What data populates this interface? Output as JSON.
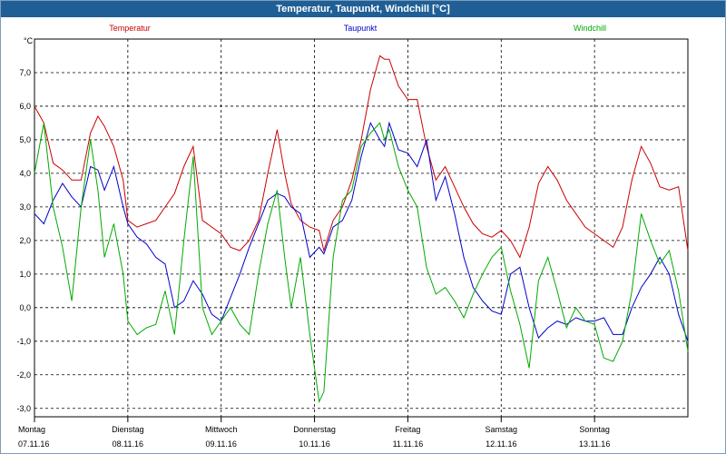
{
  "window": {
    "title": "Temperatur, Taupunkt, Windchill [°C]"
  },
  "chart_data": {
    "type": "line",
    "title": "Temperatur, Taupunkt, Windchill [°C]",
    "ylabel": "°C",
    "ylim": [
      -3.25,
      8.0
    ],
    "yticks": [
      7,
      6,
      5,
      4,
      3,
      2,
      1,
      0,
      -1,
      -2,
      -3
    ],
    "ytick_labels": [
      "7,0",
      "6,0",
      "5,0",
      "4,0",
      "3,0",
      "2,0",
      "1,0",
      "0,0",
      "-1,0",
      "-2,0",
      "-3,0"
    ],
    "x_days": [
      {
        "day": "Montag",
        "date": "07.11.16"
      },
      {
        "day": "Dienstag",
        "date": "08.11.16"
      },
      {
        "day": "Mittwoch",
        "date": "09.11.16"
      },
      {
        "day": "Donnerstag",
        "date": "10.11.16"
      },
      {
        "day": "Freitag",
        "date": "11.11.16"
      },
      {
        "day": "Samstag",
        "date": "12.11.16"
      },
      {
        "day": "Sonntag",
        "date": "13.11.16"
      }
    ],
    "grid": true,
    "legend_position": "top",
    "x_unit": "day",
    "series": [
      {
        "name": "Temperatur",
        "color": "#cc0000",
        "x": [
          0.0,
          0.1,
          0.2,
          0.3,
          0.4,
          0.5,
          0.6,
          0.68,
          0.75,
          0.85,
          0.95,
          1.0,
          1.1,
          1.2,
          1.3,
          1.4,
          1.5,
          1.6,
          1.7,
          1.8,
          1.9,
          2.0,
          2.1,
          2.2,
          2.3,
          2.4,
          2.5,
          2.6,
          2.68,
          2.75,
          2.85,
          2.95,
          3.05,
          3.1,
          3.2,
          3.3,
          3.4,
          3.5,
          3.6,
          3.7,
          3.75,
          3.8,
          3.9,
          4.0,
          4.1,
          4.2,
          4.3,
          4.4,
          4.5,
          4.6,
          4.7,
          4.8,
          4.9,
          5.0,
          5.1,
          5.2,
          5.3,
          5.4,
          5.5,
          5.6,
          5.7,
          5.8,
          5.9,
          6.0,
          6.1,
          6.2,
          6.3,
          6.4,
          6.5,
          6.6,
          6.7,
          6.8,
          6.9,
          7.0
        ],
        "values": [
          6.0,
          5.5,
          4.3,
          4.1,
          3.8,
          3.8,
          5.2,
          5.7,
          5.4,
          4.8,
          3.8,
          2.6,
          2.4,
          2.5,
          2.6,
          3.0,
          3.4,
          4.2,
          4.8,
          2.6,
          2.4,
          2.2,
          1.8,
          1.7,
          2.0,
          2.6,
          4.0,
          5.3,
          4.0,
          3.1,
          2.6,
          2.4,
          2.3,
          1.7,
          2.6,
          3.0,
          3.8,
          5.0,
          6.5,
          7.5,
          7.4,
          7.4,
          6.6,
          6.2,
          6.2,
          4.8,
          3.8,
          4.2,
          3.6,
          3.0,
          2.5,
          2.2,
          2.1,
          2.3,
          2.0,
          1.5,
          2.4,
          3.7,
          4.2,
          3.8,
          3.2,
          2.8,
          2.4,
          2.2,
          2.0,
          1.8,
          2.4,
          3.8,
          4.8,
          4.3,
          3.6,
          3.5,
          3.6,
          1.7
        ]
      },
      {
        "name": "Taupunkt",
        "color": "#0000cc",
        "x": [
          0.0,
          0.1,
          0.2,
          0.3,
          0.4,
          0.5,
          0.6,
          0.68,
          0.75,
          0.85,
          0.95,
          1.0,
          1.1,
          1.2,
          1.3,
          1.4,
          1.5,
          1.6,
          1.7,
          1.8,
          1.9,
          2.0,
          2.1,
          2.2,
          2.3,
          2.4,
          2.5,
          2.6,
          2.68,
          2.75,
          2.85,
          2.95,
          3.05,
          3.1,
          3.2,
          3.3,
          3.4,
          3.5,
          3.6,
          3.7,
          3.75,
          3.8,
          3.9,
          4.0,
          4.1,
          4.2,
          4.3,
          4.4,
          4.5,
          4.6,
          4.7,
          4.8,
          4.9,
          5.0,
          5.1,
          5.2,
          5.3,
          5.4,
          5.5,
          5.6,
          5.7,
          5.8,
          5.9,
          6.0,
          6.1,
          6.2,
          6.3,
          6.4,
          6.5,
          6.6,
          6.7,
          6.8,
          6.9,
          7.0
        ],
        "values": [
          2.8,
          2.5,
          3.2,
          3.7,
          3.3,
          3.0,
          4.2,
          4.1,
          3.5,
          4.2,
          3.0,
          2.5,
          2.1,
          1.9,
          1.5,
          1.3,
          0.0,
          0.2,
          0.8,
          0.4,
          -0.2,
          -0.4,
          0.3,
          1.0,
          1.8,
          2.5,
          3.2,
          3.4,
          3.3,
          3.0,
          2.8,
          1.5,
          1.8,
          1.6,
          2.4,
          2.6,
          3.2,
          4.5,
          5.5,
          5.0,
          4.8,
          5.5,
          4.7,
          4.6,
          4.2,
          5.0,
          3.2,
          3.9,
          2.8,
          1.5,
          0.6,
          0.2,
          -0.1,
          -0.2,
          1.0,
          1.2,
          0.0,
          -0.9,
          -0.6,
          -0.4,
          -0.5,
          -0.3,
          -0.4,
          -0.4,
          -0.3,
          -0.8,
          -0.8,
          0.0,
          0.6,
          1.0,
          1.5,
          1.0,
          -0.2,
          -1.0
        ]
      },
      {
        "name": "Windchill",
        "color": "#00aa00",
        "x": [
          0.0,
          0.1,
          0.2,
          0.3,
          0.4,
          0.5,
          0.6,
          0.68,
          0.75,
          0.85,
          0.95,
          1.0,
          1.1,
          1.2,
          1.3,
          1.4,
          1.5,
          1.6,
          1.7,
          1.8,
          1.9,
          2.0,
          2.1,
          2.2,
          2.3,
          2.4,
          2.5,
          2.6,
          2.68,
          2.75,
          2.85,
          2.95,
          3.05,
          3.1,
          3.2,
          3.3,
          3.4,
          3.5,
          3.6,
          3.7,
          3.75,
          3.8,
          3.9,
          4.0,
          4.1,
          4.2,
          4.3,
          4.4,
          4.5,
          4.6,
          4.7,
          4.8,
          4.9,
          5.0,
          5.1,
          5.2,
          5.3,
          5.4,
          5.5,
          5.6,
          5.7,
          5.8,
          5.9,
          6.0,
          6.1,
          6.2,
          6.3,
          6.4,
          6.5,
          6.6,
          6.7,
          6.8,
          6.9,
          7.0
        ],
        "values": [
          4.0,
          5.5,
          3.0,
          1.8,
          0.2,
          3.0,
          5.0,
          3.5,
          1.5,
          2.5,
          1.0,
          -0.4,
          -0.8,
          -0.6,
          -0.5,
          0.5,
          -0.8,
          2.0,
          4.5,
          0.0,
          -0.8,
          -0.4,
          0.0,
          -0.5,
          -0.8,
          1.0,
          2.5,
          3.5,
          1.5,
          0.0,
          1.5,
          -0.8,
          -2.8,
          -2.5,
          1.5,
          3.2,
          3.5,
          4.8,
          5.2,
          5.5,
          5.0,
          5.3,
          4.2,
          3.5,
          3.0,
          1.2,
          0.4,
          0.6,
          0.2,
          -0.3,
          0.4,
          1.0,
          1.5,
          1.8,
          0.5,
          -0.5,
          -1.8,
          0.8,
          1.5,
          0.5,
          -0.6,
          0.0,
          -0.4,
          -0.5,
          -1.5,
          -1.6,
          -1.0,
          0.5,
          2.8,
          2.0,
          1.3,
          1.7,
          0.5,
          -1.3
        ]
      }
    ]
  }
}
